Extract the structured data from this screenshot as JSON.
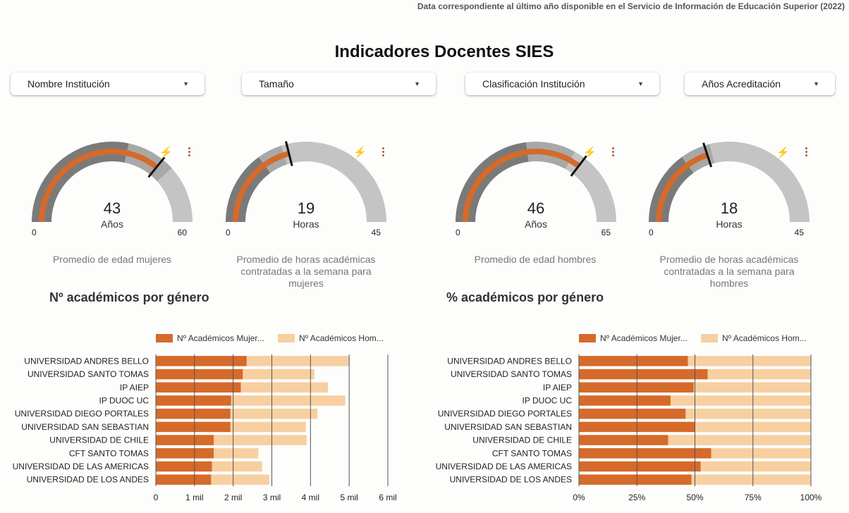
{
  "header": {
    "note": "Data correspondiente al último año disponible en el Servicio de Información de Educación Superior (2022)",
    "title": "Indicadores Docentes SIES"
  },
  "filters": [
    {
      "label": "Nombre Institución"
    },
    {
      "label": "Tamaño"
    },
    {
      "label": "Clasificación Institución"
    },
    {
      "label": "Años Acreditación"
    }
  ],
  "gauges": [
    {
      "value": "43",
      "unit": "Años",
      "min": "0",
      "max": "60",
      "caption": "Promedio de edad mujeres",
      "v": 43,
      "vmin": 0,
      "vmax": 60,
      "target": 46
    },
    {
      "value": "19",
      "unit": "Horas",
      "min": "0",
      "max": "45",
      "caption": "Promedio de horas académicas contratadas a la semana para mujeres",
      "v": 19,
      "vmin": 0,
      "vmax": 45,
      "target": 18
    },
    {
      "value": "46",
      "unit": "Años",
      "min": "0",
      "max": "65",
      "caption": "Promedio de edad hombres",
      "v": 46,
      "vmin": 0,
      "vmax": 65,
      "target": 43
    },
    {
      "value": "18",
      "unit": "Horas",
      "min": "0",
      "max": "45",
      "caption": "Promedio de horas académicas contratadas a la semana para hombres",
      "v": 18,
      "vmin": 0,
      "vmax": 45,
      "target": 19
    }
  ],
  "colors": {
    "women": "#d56a2a",
    "men": "#f7cfa0",
    "gauge_band_dark": "#7a7a7a",
    "gauge_band_mid": "#a8a8a8",
    "gauge_band_light": "#c4c4c4",
    "accent_icon": "#b45f27"
  },
  "sections": {
    "count_title": "Nº académicos por género",
    "pct_title": "% académicos por género"
  },
  "chart_data": [
    {
      "type": "bar",
      "orientation": "horizontal",
      "stacked": true,
      "title": "Nº académicos por género",
      "categories": [
        "UNIVERSIDAD ANDRES BELLO",
        "UNIVERSIDAD SANTO TOMAS",
        "IP AIEP",
        "IP DUOC UC",
        "UNIVERSIDAD DIEGO PORTALES",
        "UNIVERSIDAD SAN SEBASTIAN",
        "UNIVERSIDAD DE CHILE",
        "CFT SANTO TOMAS",
        "UNIVERSIDAD DE LAS AMERICAS",
        "UNIVERSIDAD DE LOS ANDES"
      ],
      "series": [
        {
          "name": "Nº Académicos Mujer...",
          "values": [
            2350,
            2250,
            2200,
            1950,
            1930,
            1930,
            1500,
            1500,
            1450,
            1430
          ]
        },
        {
          "name": "Nº Académicos Hom...",
          "values": [
            2650,
            1850,
            2250,
            2950,
            2250,
            1950,
            2400,
            1150,
            1300,
            1500
          ]
        }
      ],
      "xticks": [
        "0",
        "1 mil",
        "2 mil",
        "3 mil",
        "4 mil",
        "5 mil",
        "6 mil"
      ],
      "xlim": [
        0,
        6000
      ],
      "grid": true,
      "legend": "top"
    },
    {
      "type": "bar",
      "orientation": "horizontal",
      "stacked": true,
      "percent": true,
      "title": "% académicos por género",
      "categories": [
        "UNIVERSIDAD ANDRES BELLO",
        "UNIVERSIDAD SANTO TOMAS",
        "IP AIEP",
        "IP DUOC UC",
        "UNIVERSIDAD DIEGO PORTALES",
        "UNIVERSIDAD SAN SEBASTIAN",
        "UNIVERSIDAD DE CHILE",
        "CFT SANTO TOMAS",
        "UNIVERSIDAD DE LAS AMERICAS",
        "UNIVERSIDAD DE LOS ANDES"
      ],
      "series": [
        {
          "name": "Nº Académicos Mujer...",
          "values": [
            47,
            55.5,
            49.5,
            39.5,
            46,
            50,
            38.5,
            57,
            52.5,
            48.5
          ]
        },
        {
          "name": "Nº Académicos Hom...",
          "values": [
            53,
            44.5,
            50.5,
            60.5,
            54,
            50,
            61.5,
            43,
            47.5,
            51.5
          ]
        }
      ],
      "xticks": [
        "0%",
        "25%",
        "50%",
        "75%",
        "100%"
      ],
      "xlim": [
        0,
        100
      ],
      "grid": true,
      "legend": "top"
    }
  ]
}
